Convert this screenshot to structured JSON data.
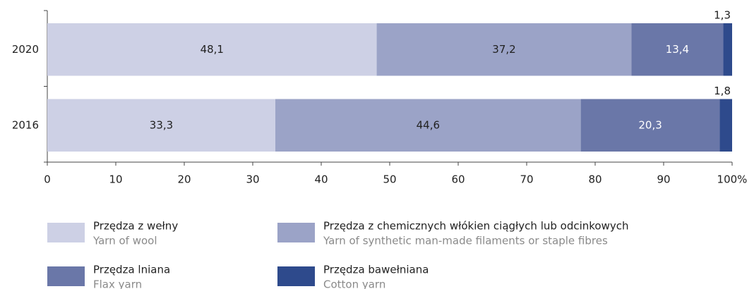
{
  "chart_data": {
    "type": "stacked_barh",
    "categories": [
      "2020",
      "2016"
    ],
    "series": [
      {
        "name": "Przędza z wełny",
        "subname": "Yarn of wool",
        "color": "#cdd0e5",
        "label_color": "#222222",
        "values": [
          48.1,
          33.3
        ],
        "value_labels": [
          "48,1",
          "33,3"
        ]
      },
      {
        "name": "Przędza z chemicznych włókien ciągłych lub odcinkowych",
        "subname": "Yarn of synthetic man-made filaments or staple fibres",
        "color": "#9ba3c7",
        "label_color": "#222222",
        "values": [
          37.2,
          44.6
        ],
        "value_labels": [
          "37,2",
          "44,6"
        ]
      },
      {
        "name": "Przędza lniana",
        "subname": "Flax yarn",
        "color": "#6a77a8",
        "label_color": "#ffffff",
        "values": [
          13.4,
          20.3
        ],
        "value_labels": [
          "13,4",
          "20,3"
        ]
      },
      {
        "name": "Przędza bawełniana",
        "subname": "Cotton yarn",
        "color": "#2e4a8c",
        "label_color": "#222222",
        "label_outside": true,
        "values": [
          1.3,
          1.8
        ],
        "value_labels": [
          "1,3",
          "1,8"
        ]
      }
    ],
    "xlim": [
      0,
      100
    ],
    "xticks": [
      0,
      10,
      20,
      30,
      40,
      50,
      60,
      70,
      80,
      90,
      {
        "value": 100,
        "label": "100%"
      }
    ]
  }
}
